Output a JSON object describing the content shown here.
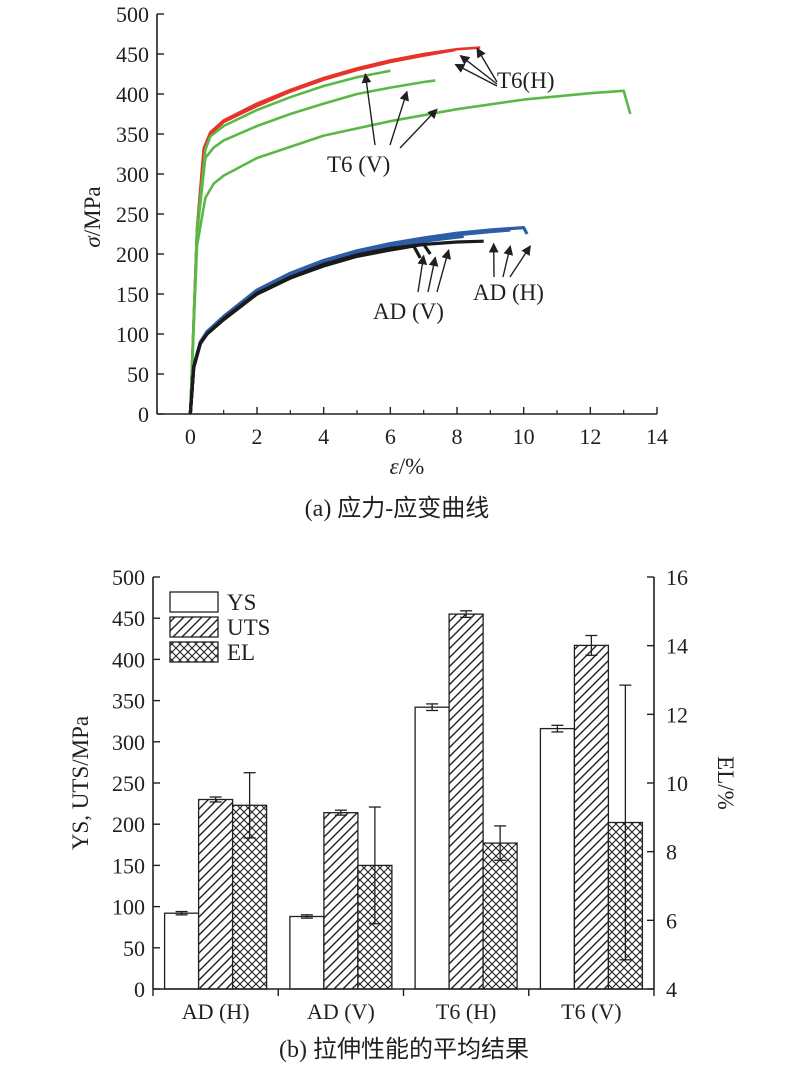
{
  "colors": {
    "T6_H": "#e8332a",
    "T6_V": "#5ab946",
    "AD_H": "#2e5da8",
    "AD_V": "#1a1a1a",
    "axis": "#231f20"
  },
  "panel_a": {
    "caption": "(a) 应力-应变曲线",
    "ylabel_sym": "σ",
    "ylabel_unit": "/MPa",
    "xlabel_sym": "ε",
    "xlabel_unit": "/%",
    "annotations": {
      "t6h": "T6(H)",
      "t6v": "T6 (V)",
      "adv": "AD (V)",
      "adh": "AD (H)"
    }
  },
  "panel_b": {
    "caption": "(b) 拉伸性能的平均结果",
    "ylabel_left": "YS, UTS/MPa",
    "ylabel_right": "EL/%",
    "legend": [
      "YS",
      "UTS",
      "EL"
    ]
  },
  "chart_data": [
    {
      "type": "line",
      "title": "",
      "xlabel": "ε/%",
      "ylabel": "σ/MPa",
      "xlim": [
        -1,
        14
      ],
      "ylim": [
        0,
        500
      ],
      "xticks": [
        0,
        2,
        4,
        6,
        8,
        10,
        12,
        14
      ],
      "yticks": [
        0,
        50,
        100,
        150,
        200,
        250,
        300,
        350,
        400,
        450,
        500
      ],
      "grid": false,
      "series": [
        {
          "name": "T6 (H)",
          "color": "#e8332a",
          "fracture_strain": 7.95,
          "x": [
            0,
            0.2,
            0.4,
            0.6,
            1,
            2,
            3,
            4,
            5,
            6,
            7,
            7.95
          ],
          "y": [
            0,
            230,
            330,
            350,
            365,
            385,
            403,
            418,
            430,
            440,
            448,
            455
          ]
        },
        {
          "name": "T6 (H)",
          "color": "#e8332a",
          "fracture_strain": 8.7,
          "x": [
            0,
            0.2,
            0.4,
            0.6,
            1,
            2,
            3,
            4,
            5,
            6,
            7,
            8,
            8.7
          ],
          "y": [
            0,
            232,
            332,
            352,
            367,
            388,
            405,
            420,
            432,
            442,
            450,
            456,
            458
          ]
        },
        {
          "name": "T6 (V)",
          "color": "#5ab946",
          "fracture_strain": 6.0,
          "x": [
            0,
            0.2,
            0.45,
            0.6,
            1,
            2,
            3,
            4,
            5,
            6
          ],
          "y": [
            0,
            230,
            330,
            347,
            360,
            380,
            396,
            410,
            421,
            429
          ]
        },
        {
          "name": "T6 (V)",
          "color": "#5ab946",
          "fracture_strain": 7.35,
          "x": [
            0,
            0.2,
            0.45,
            0.7,
            1,
            2,
            3,
            4,
            5,
            6,
            7,
            7.35
          ],
          "y": [
            0,
            225,
            320,
            333,
            342,
            360,
            375,
            388,
            400,
            408,
            415,
            417
          ]
        },
        {
          "name": "T6 (V)",
          "color": "#5ab946",
          "fracture_strain": 13.2,
          "x": [
            0,
            0.2,
            0.45,
            0.7,
            1,
            2,
            4,
            6,
            8,
            10,
            12,
            13.0,
            13.2
          ],
          "y": [
            0,
            210,
            270,
            288,
            298,
            320,
            348,
            366,
            381,
            393,
            401,
            404,
            375
          ]
        },
        {
          "name": "AD (H)",
          "color": "#2e5da8",
          "fracture_strain": 10.1,
          "x": [
            0,
            0.1,
            0.3,
            0.5,
            1,
            2,
            3,
            4,
            5,
            6,
            7,
            8,
            9,
            10,
            10.1
          ],
          "y": [
            0,
            60,
            90,
            103,
            122,
            155,
            176,
            192,
            204,
            213,
            220,
            226,
            230,
            233,
            225
          ]
        },
        {
          "name": "AD (H)",
          "color": "#2e5da8",
          "fracture_strain": 9.6,
          "x": [
            0,
            0.1,
            0.3,
            0.5,
            1,
            2,
            3,
            4,
            5,
            6,
            7,
            8,
            9,
            9.6
          ],
          "y": [
            0,
            60,
            90,
            102,
            121,
            153,
            174,
            190,
            202,
            211,
            218,
            224,
            228,
            230
          ]
        },
        {
          "name": "AD (H)",
          "color": "#2e5da8",
          "fracture_strain": 8.2,
          "x": [
            0,
            0.1,
            0.3,
            0.5,
            1,
            2,
            3,
            4,
            5,
            6,
            7,
            8,
            8.2
          ],
          "y": [
            0,
            59,
            89,
            101,
            120,
            152,
            173,
            189,
            200,
            209,
            216,
            221,
            222
          ]
        },
        {
          "name": "AD (V)",
          "color": "#1a1a1a",
          "fracture_strain": 6.9,
          "x": [
            0,
            0.1,
            0.3,
            0.5,
            1,
            2,
            3,
            4,
            5,
            6,
            6.7,
            6.9
          ],
          "y": [
            0,
            58,
            88,
            100,
            118,
            150,
            170,
            185,
            197,
            205,
            210,
            195
          ]
        },
        {
          "name": "AD (V)",
          "color": "#1a1a1a",
          "fracture_strain": 7.2,
          "x": [
            0,
            0.1,
            0.3,
            0.5,
            1,
            2,
            3,
            4,
            5,
            6,
            7,
            7.2
          ],
          "y": [
            0,
            58,
            88,
            100,
            118,
            150,
            170,
            186,
            198,
            206,
            212,
            200
          ]
        },
        {
          "name": "AD (V)",
          "color": "#1a1a1a",
          "fracture_strain": 8.8,
          "x": [
            0,
            0.1,
            0.3,
            0.5,
            1,
            2,
            3,
            4,
            5,
            6,
            7,
            8,
            8.8
          ],
          "y": [
            0,
            58,
            88,
            100,
            119,
            151,
            171,
            187,
            199,
            207,
            212,
            215,
            216
          ]
        }
      ],
      "annotations": [
        {
          "text": "T6(H)",
          "points_to": "T6 (H) fracture ends"
        },
        {
          "text": "T6 (V)",
          "points_to": "T6 (V) curves"
        },
        {
          "text": "AD (V)",
          "points_to": "AD (V) fracture ends"
        },
        {
          "text": "AD (H)",
          "points_to": "AD (H) fracture ends"
        }
      ]
    },
    {
      "type": "bar",
      "title": "",
      "xlabel": "",
      "ylabel": "YS, UTS/MPa",
      "ylabel_right": "EL/%",
      "categories": [
        "AD (H)",
        "AD (V)",
        "T6 (H)",
        "T6 (V)"
      ],
      "ylim": [
        0,
        500
      ],
      "ylim_right": [
        4,
        16
      ],
      "yticks": [
        0,
        50,
        100,
        150,
        200,
        250,
        300,
        350,
        400,
        450,
        500
      ],
      "yticks_right": [
        4,
        6,
        8,
        10,
        12,
        14,
        16
      ],
      "legend_position": "top-left",
      "grid": false,
      "series": [
        {
          "name": "YS",
          "axis": "left",
          "pattern": "open",
          "values": [
            92,
            88,
            342,
            316
          ],
          "errors": [
            2,
            2,
            4,
            4
          ]
        },
        {
          "name": "UTS",
          "axis": "left",
          "pattern": "diagonal-hatch",
          "values": [
            230,
            214,
            455,
            417
          ],
          "errors": [
            3,
            3,
            4,
            12
          ]
        },
        {
          "name": "EL",
          "axis": "right",
          "pattern": "crosshatch",
          "values": [
            9.35,
            7.6,
            8.25,
            8.85
          ],
          "errors": [
            0.95,
            1.7,
            0.5,
            4.0
          ]
        }
      ]
    }
  ]
}
